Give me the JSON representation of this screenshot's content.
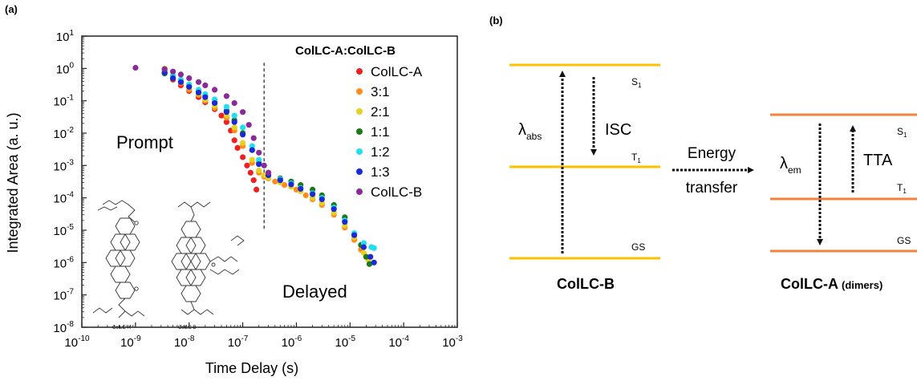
{
  "panel_a": {
    "label": "(a)",
    "prompt_label": "Prompt",
    "delayed_label": "Delayed",
    "molecule_a_label": "ColLC-A",
    "molecule_b_label": "ColLC-B"
  },
  "panel_b": {
    "label": "(b)",
    "left_molecule": "ColLC-B",
    "right_molecule": "ColLC-A",
    "right_molecule_suffix": "(dimers)",
    "s1": "S",
    "t1": "T",
    "sub_1": "1",
    "gs": "GS",
    "lambda": "λ",
    "abs_sub": "abs",
    "em_sub": "em",
    "isc": "ISC",
    "tta": "TTA",
    "energy": "Energy",
    "transfer": "transfer",
    "left_level_color": "#ffc000",
    "right_level_color": "#f4823c"
  },
  "chart_data": {
    "type": "scatter",
    "xlabel": "Time Delay (s)",
    "ylabel": "Integrated Area (a. u.)",
    "xscale": "log",
    "yscale": "log",
    "xlim": [
      1e-10,
      0.001
    ],
    "ylim": [
      1e-08,
      10
    ],
    "x_ticks": [
      {
        "base": "10",
        "exp": "-10",
        "value": 1e-10
      },
      {
        "base": "10",
        "exp": "-9",
        "value": 1e-09
      },
      {
        "base": "10",
        "exp": "-8",
        "value": 1e-08
      },
      {
        "base": "10",
        "exp": "-7",
        "value": 1e-07
      },
      {
        "base": "10",
        "exp": "-6",
        "value": 1e-06
      },
      {
        "base": "10",
        "exp": "-5",
        "value": 1e-05
      },
      {
        "base": "10",
        "exp": "-4",
        "value": 0.0001
      },
      {
        "base": "10",
        "exp": "-3",
        "value": 0.001
      }
    ],
    "y_ticks": [
      {
        "base": "10",
        "exp": "1",
        "value": 10
      },
      {
        "base": "10",
        "exp": "0",
        "value": 1
      },
      {
        "base": "10",
        "exp": "-1",
        "value": 0.1
      },
      {
        "base": "10",
        "exp": "-2",
        "value": 0.01
      },
      {
        "base": "10",
        "exp": "-3",
        "value": 0.001
      },
      {
        "base": "10",
        "exp": "-4",
        "value": 0.0001
      },
      {
        "base": "10",
        "exp": "-5",
        "value": 1e-05
      },
      {
        "base": "10",
        "exp": "-6",
        "value": 1e-06
      },
      {
        "base": "10",
        "exp": "-7",
        "value": 1e-07
      },
      {
        "base": "10",
        "exp": "-8",
        "value": 1e-08
      }
    ],
    "divider_x": 2.5e-07,
    "legend_title": "ColLC-A:ColLC-B",
    "legend_position": "top-right",
    "series": [
      {
        "name": "ColLC-A",
        "color": "#f02020",
        "points": [
          [
            3.5e-09,
            0.72
          ],
          [
            5e-09,
            0.45
          ],
          [
            7e-09,
            0.3
          ],
          [
            1e-08,
            0.2
          ],
          [
            1.5e-08,
            0.13
          ],
          [
            2e-08,
            0.09
          ],
          [
            3e-08,
            0.055
          ],
          [
            4e-08,
            0.035
          ],
          [
            5e-08,
            0.022
          ],
          [
            6e-08,
            0.012
          ],
          [
            7e-08,
            0.006
          ],
          [
            8e-08,
            0.0035
          ],
          [
            1e-07,
            0.0018
          ],
          [
            1.2e-07,
            0.001
          ],
          [
            1.4e-07,
            0.0006
          ],
          [
            1.6e-07,
            0.00035
          ],
          [
            1.8e-07,
            0.00018
          ]
        ]
      },
      {
        "name": "3:1",
        "color": "#ff8c1a",
        "points": [
          [
            3.5e-09,
            0.8
          ],
          [
            5e-09,
            0.5
          ],
          [
            7e-09,
            0.35
          ],
          [
            1e-08,
            0.22
          ],
          [
            1.5e-08,
            0.15
          ],
          [
            2e-08,
            0.1
          ],
          [
            3e-08,
            0.06
          ],
          [
            5e-08,
            0.03
          ],
          [
            7e-08,
            0.012
          ],
          [
            1e-07,
            0.004
          ],
          [
            1.5e-07,
            0.0012
          ],
          [
            2e-07,
            0.0006
          ],
          [
            2.5e-07,
            0.00045
          ],
          [
            3e-07,
            0.0004
          ],
          [
            4e-07,
            0.00032
          ],
          [
            6e-07,
            0.00025
          ],
          [
            1e-06,
            0.00018
          ],
          [
            1.5e-06,
            0.00012
          ],
          [
            2e-06,
            9e-05
          ],
          [
            3e-06,
            6e-05
          ],
          [
            5e-06,
            3e-05
          ],
          [
            8e-06,
            1.2e-05
          ],
          [
            1.2e-05,
            5e-06
          ],
          [
            1.6e-05,
            2.5e-06
          ],
          [
            2e-05,
            1.5e-06
          ]
        ]
      },
      {
        "name": "2:1",
        "color": "#e6d020",
        "points": [
          [
            3.5e-09,
            1.0
          ],
          [
            5e-09,
            0.6
          ],
          [
            7e-09,
            0.4
          ],
          [
            1e-08,
            0.26
          ],
          [
            1.5e-08,
            0.17
          ],
          [
            2e-08,
            0.11
          ],
          [
            3e-08,
            0.07
          ],
          [
            5e-08,
            0.035
          ],
          [
            7e-08,
            0.015
          ],
          [
            1e-07,
            0.005
          ],
          [
            1.5e-07,
            0.0015
          ],
          [
            2e-07,
            0.0007
          ],
          [
            2.5e-07,
            0.0005
          ],
          [
            3e-07,
            0.00042
          ],
          [
            5e-07,
            0.0003
          ],
          [
            8e-07,
            0.00022
          ],
          [
            1.2e-06,
            0.00016
          ],
          [
            2e-06,
            0.0001
          ],
          [
            3e-06,
            7e-05
          ],
          [
            5e-06,
            3.5e-05
          ],
          [
            8e-06,
            1.4e-05
          ],
          [
            1.2e-05,
            6e-06
          ],
          [
            1.8e-05,
            2e-06
          ],
          [
            2.2e-05,
            1.2e-06
          ]
        ]
      },
      {
        "name": "1:1",
        "color": "#1a7a1a",
        "points": [
          [
            3.5e-09,
            0.7
          ],
          [
            5e-09,
            0.5
          ],
          [
            7e-09,
            0.4
          ],
          [
            1e-08,
            0.28
          ],
          [
            1.5e-08,
            0.2
          ],
          [
            2e-08,
            0.14
          ],
          [
            3e-08,
            0.09
          ],
          [
            5e-08,
            0.05
          ],
          [
            7e-08,
            0.025
          ],
          [
            1e-07,
            0.01
          ],
          [
            1.5e-07,
            0.003
          ],
          [
            2e-07,
            0.0012
          ],
          [
            3e-07,
            0.0006
          ],
          [
            5e-07,
            0.0004
          ],
          [
            8e-07,
            0.00032
          ],
          [
            1.2e-06,
            0.00025
          ],
          [
            2e-06,
            0.00018
          ],
          [
            3e-06,
            0.00012
          ],
          [
            5e-06,
            6e-05
          ],
          [
            8e-06,
            2.5e-05
          ],
          [
            1.2e-05,
            8e-06
          ],
          [
            1.6e-05,
            3.5e-06
          ],
          [
            2e-05,
            1.5e-06
          ],
          [
            2.3e-05,
            9e-07
          ]
        ]
      },
      {
        "name": "1:2",
        "color": "#20e0f0",
        "points": [
          [
            3.5e-09,
            0.9
          ],
          [
            5e-09,
            0.6
          ],
          [
            7e-09,
            0.45
          ],
          [
            1e-08,
            0.32
          ],
          [
            1.5e-08,
            0.22
          ],
          [
            2e-08,
            0.16
          ],
          [
            3e-08,
            0.11
          ],
          [
            5e-08,
            0.065
          ],
          [
            7e-08,
            0.035
          ],
          [
            1e-07,
            0.015
          ],
          [
            1.5e-07,
            0.004
          ],
          [
            2e-07,
            0.0015
          ],
          [
            3e-07,
            0.0006
          ],
          [
            5e-07,
            0.00038
          ],
          [
            8e-07,
            0.00028
          ],
          [
            1.2e-06,
            0.0002
          ],
          [
            2e-06,
            0.00014
          ],
          [
            3e-06,
            0.0001
          ],
          [
            5e-06,
            5e-05
          ],
          [
            8e-06,
            2e-05
          ],
          [
            1.2e-05,
            8e-06
          ],
          [
            1.8e-05,
            4e-06
          ],
          [
            2.5e-05,
            3e-06
          ],
          [
            2.8e-05,
            2.8e-06
          ]
        ]
      },
      {
        "name": "1:3",
        "color": "#1a2ad6",
        "points": [
          [
            3.5e-09,
            0.75
          ],
          [
            5e-09,
            0.5
          ],
          [
            7e-09,
            0.38
          ],
          [
            1e-08,
            0.27
          ],
          [
            1.5e-08,
            0.18
          ],
          [
            2e-08,
            0.13
          ],
          [
            3e-08,
            0.085
          ],
          [
            5e-08,
            0.045
          ],
          [
            7e-08,
            0.022
          ],
          [
            1e-07,
            0.009
          ],
          [
            1.5e-07,
            0.003
          ],
          [
            2e-07,
            0.0011
          ],
          [
            3e-07,
            0.0005
          ],
          [
            5e-07,
            0.00035
          ],
          [
            8e-07,
            0.00026
          ],
          [
            1.2e-06,
            0.00019
          ],
          [
            2e-06,
            0.00013
          ],
          [
            3e-06,
            9e-05
          ],
          [
            5e-06,
            4.5e-05
          ],
          [
            8e-06,
            1.8e-05
          ],
          [
            1.2e-05,
            7e-06
          ],
          [
            1.8e-05,
            3e-06
          ],
          [
            2.4e-05,
            1.5e-06
          ],
          [
            2.8e-05,
            1e-06
          ]
        ]
      },
      {
        "name": "ColLC-B",
        "color": "#8a2a9a",
        "points": [
          [
            1e-09,
            1.05
          ],
          [
            3.5e-09,
            0.95
          ],
          [
            5e-09,
            0.8
          ],
          [
            7e-09,
            0.65
          ],
          [
            1e-08,
            0.5
          ],
          [
            1.5e-08,
            0.38
          ],
          [
            2e-08,
            0.3
          ],
          [
            3e-08,
            0.22
          ],
          [
            5e-08,
            0.14
          ],
          [
            7e-08,
            0.085
          ],
          [
            1e-07,
            0.045
          ],
          [
            1.3e-07,
            0.018
          ],
          [
            1.6e-07,
            0.007
          ],
          [
            2e-07,
            0.0025
          ],
          [
            2.5e-07,
            0.001
          ],
          [
            3e-07,
            0.0006
          ]
        ]
      }
    ]
  }
}
